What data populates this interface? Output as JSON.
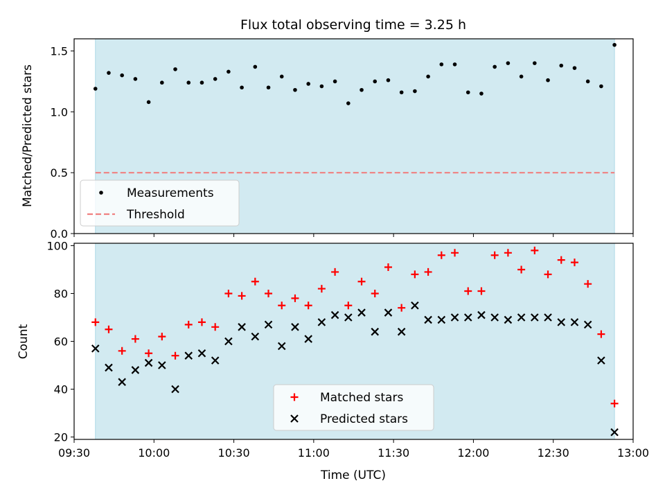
{
  "chart_data": [
    {
      "type": "scatter",
      "title": "Flux total observing time = 3.25 h",
      "ylabel": "Matched/Predicted stars",
      "xlabel": "",
      "ylim": [
        0.0,
        1.6
      ],
      "yticks": [
        0.0,
        0.5,
        1.0,
        1.5
      ],
      "ytick_labels": [
        "0.0",
        "0.5",
        "1.0",
        "1.5"
      ],
      "xlim": [
        "09:30",
        "13:00"
      ],
      "shaded_interval": [
        "09:38",
        "12:53"
      ],
      "shade_color": "#add8e6",
      "legend": {
        "placement": "lower-left",
        "entries": [
          "Measurements",
          "Threshold"
        ]
      },
      "series": [
        {
          "name": "Measurements",
          "marker": "dot",
          "color": "#000000",
          "x": [
            "09:38",
            "09:43",
            "09:48",
            "09:53",
            "09:58",
            "10:03",
            "10:08",
            "10:13",
            "10:18",
            "10:23",
            "10:28",
            "10:33",
            "10:38",
            "10:43",
            "10:48",
            "10:53",
            "10:58",
            "11:03",
            "11:08",
            "11:13",
            "11:18",
            "11:23",
            "11:28",
            "11:33",
            "11:38",
            "11:43",
            "11:48",
            "11:53",
            "11:58",
            "12:03",
            "12:08",
            "12:13",
            "12:18",
            "12:23",
            "12:28",
            "12:33",
            "12:38",
            "12:43",
            "12:48",
            "12:53"
          ],
          "y": [
            1.19,
            1.32,
            1.3,
            1.27,
            1.08,
            1.24,
            1.35,
            1.24,
            1.24,
            1.27,
            1.33,
            1.2,
            1.37,
            1.2,
            1.29,
            1.18,
            1.23,
            1.21,
            1.25,
            1.07,
            1.18,
            1.25,
            1.26,
            1.16,
            1.17,
            1.29,
            1.39,
            1.39,
            1.16,
            1.15,
            1.37,
            1.4,
            1.29,
            1.4,
            1.26,
            1.38,
            1.36,
            1.25,
            1.21,
            1.55
          ]
        },
        {
          "name": "Threshold",
          "style": "dashed",
          "color": "#f08080",
          "x": [
            "09:38",
            "12:53"
          ],
          "y": [
            0.5,
            0.5
          ]
        }
      ]
    },
    {
      "type": "scatter",
      "title": "",
      "ylabel": "Count",
      "xlabel": "Time (UTC)",
      "ylim": [
        19,
        101
      ],
      "yticks": [
        20,
        40,
        60,
        80,
        100
      ],
      "ytick_labels": [
        "20",
        "40",
        "60",
        "80",
        "100"
      ],
      "xlim": [
        "09:30",
        "13:00"
      ],
      "xticks": [
        "09:30",
        "10:00",
        "10:30",
        "11:00",
        "11:30",
        "12:00",
        "12:30",
        "13:00"
      ],
      "xtick_labels": [
        "09:30",
        "10:00",
        "10:30",
        "11:00",
        "11:30",
        "12:00",
        "12:30",
        "13:00"
      ],
      "shaded_interval": [
        "09:38",
        "12:53"
      ],
      "shade_color": "#add8e6",
      "legend": {
        "placement": "lower-center",
        "entries": [
          "Matched stars",
          "Predicted stars"
        ]
      },
      "series": [
        {
          "name": "Matched stars",
          "marker": "plus",
          "color": "#ff0000",
          "x": [
            "09:38",
            "09:43",
            "09:48",
            "09:53",
            "09:58",
            "10:03",
            "10:08",
            "10:13",
            "10:18",
            "10:23",
            "10:28",
            "10:33",
            "10:38",
            "10:43",
            "10:48",
            "10:53",
            "10:58",
            "11:03",
            "11:08",
            "11:13",
            "11:18",
            "11:23",
            "11:28",
            "11:33",
            "11:38",
            "11:43",
            "11:48",
            "11:53",
            "11:58",
            "12:03",
            "12:08",
            "12:13",
            "12:18",
            "12:23",
            "12:28",
            "12:33",
            "12:38",
            "12:43",
            "12:48",
            "12:53"
          ],
          "y": [
            68,
            65,
            56,
            61,
            55,
            62,
            54,
            67,
            68,
            66,
            80,
            79,
            85,
            80,
            75,
            78,
            75,
            82,
            89,
            75,
            85,
            80,
            91,
            74,
            88,
            89,
            96,
            97,
            81,
            81,
            96,
            97,
            90,
            98,
            88,
            94,
            93,
            84,
            63,
            34
          ]
        },
        {
          "name": "Predicted stars",
          "marker": "x",
          "color": "#000000",
          "x": [
            "09:38",
            "09:43",
            "09:48",
            "09:53",
            "09:58",
            "10:03",
            "10:08",
            "10:13",
            "10:18",
            "10:23",
            "10:28",
            "10:33",
            "10:38",
            "10:43",
            "10:48",
            "10:53",
            "10:58",
            "11:03",
            "11:08",
            "11:13",
            "11:18",
            "11:23",
            "11:28",
            "11:33",
            "11:38",
            "11:43",
            "11:48",
            "11:53",
            "11:58",
            "12:03",
            "12:08",
            "12:13",
            "12:18",
            "12:23",
            "12:28",
            "12:33",
            "12:38",
            "12:43",
            "12:48",
            "12:53"
          ],
          "y": [
            57,
            49,
            43,
            48,
            51,
            50,
            40,
            54,
            55,
            52,
            60,
            66,
            62,
            67,
            58,
            66,
            61,
            68,
            71,
            70,
            72,
            64,
            72,
            64,
            75,
            69,
            69,
            70,
            70,
            71,
            70,
            69,
            70,
            70,
            70,
            68,
            68,
            67,
            52,
            22
          ]
        }
      ]
    }
  ]
}
